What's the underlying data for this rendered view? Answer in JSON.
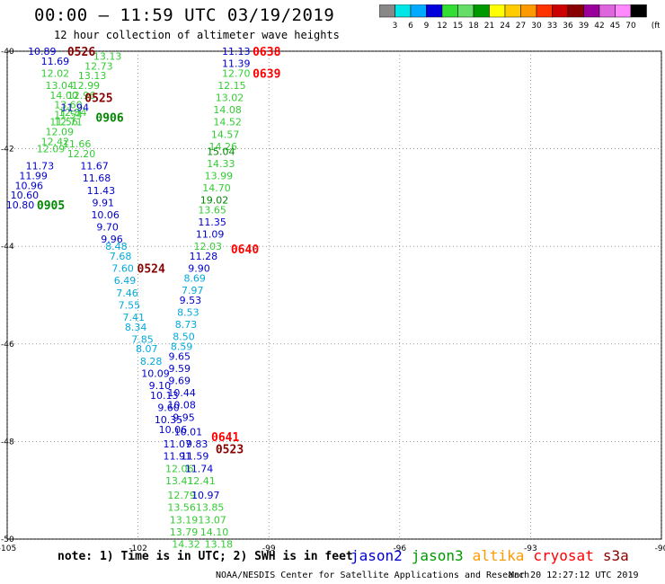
{
  "header": {
    "title": "00:00 – 11:59 UTC 03/19/2019",
    "subtitle": "12 hour collection of altimeter wave heights"
  },
  "colorbar": {
    "labels": [
      "3",
      "6",
      "9",
      "12",
      "15",
      "18",
      "21",
      "24",
      "27",
      "30",
      "33",
      "36",
      "39",
      "42",
      "45",
      "70"
    ],
    "unit": "(ft)",
    "colors": [
      "#888888",
      "#00e5e5",
      "#00aaff",
      "#0000dd",
      "#33dd33",
      "#66dd66",
      "#009900",
      "#ffff00",
      "#ffcc00",
      "#ff9900",
      "#ff3300",
      "#cc0000",
      "#880000",
      "#990099",
      "#dd66dd",
      "#ff88ff",
      "#000000"
    ]
  },
  "satellite_colors": {
    "jason2": "#0000cc",
    "jason3": "#33cc33",
    "jason3_dark": "#008800",
    "altika": "#ff9900",
    "cryosat": "#ff0000",
    "cryosat_dark": "#880000",
    "cyan": "#00aadd"
  },
  "chart_data": {
    "type": "scatter",
    "xlim": [
      -105,
      -90
    ],
    "ylim": [
      -50,
      -40
    ],
    "xticks": [
      -105,
      -102,
      -99,
      -96,
      -93,
      -90
    ],
    "yticks": [
      -40,
      -42,
      -44,
      -46,
      -48,
      -50
    ],
    "grid": true,
    "points": [
      {
        "x": -104.2,
        "y": -40.0,
        "v": "10.89",
        "c": "jason2"
      },
      {
        "x": -103.9,
        "y": -40.2,
        "v": "11.69",
        "c": "jason2"
      },
      {
        "x": -103.9,
        "y": -40.45,
        "v": "12.02",
        "c": "jason3"
      },
      {
        "x": -103.8,
        "y": -40.7,
        "v": "13.04",
        "c": "jason3"
      },
      {
        "x": -103.7,
        "y": -40.9,
        "v": "14.00",
        "c": "jason3"
      },
      {
        "x": -103.6,
        "y": -41.1,
        "v": "13.60",
        "c": "jason3"
      },
      {
        "x": -103.5,
        "y": -41.25,
        "v": "12.84",
        "c": "jason3"
      },
      {
        "x": -103.6,
        "y": -41.45,
        "v": "12.71",
        "c": "jason3"
      },
      {
        "x": -103.8,
        "y": -41.65,
        "v": "12.09",
        "c": "jason3"
      },
      {
        "x": -103.9,
        "y": -41.85,
        "v": "12.42",
        "c": "jason3"
      },
      {
        "x": -104.0,
        "y": -42.0,
        "v": "12.09",
        "c": "jason3"
      },
      {
        "x": -104.25,
        "y": -42.35,
        "v": "11.73",
        "c": "jason2"
      },
      {
        "x": -104.4,
        "y": -42.55,
        "v": "11.99",
        "c": "jason2"
      },
      {
        "x": -104.5,
        "y": -42.75,
        "v": "10.96",
        "c": "jason2"
      },
      {
        "x": -104.6,
        "y": -42.95,
        "v": "10.60",
        "c": "jason2"
      },
      {
        "x": -104.7,
        "y": -43.15,
        "v": "10.80",
        "c": "jason2"
      },
      {
        "x": -102.7,
        "y": -40.1,
        "v": "13.13",
        "c": "jason3"
      },
      {
        "x": -102.9,
        "y": -40.3,
        "v": "12.73",
        "c": "jason3"
      },
      {
        "x": -103.05,
        "y": -40.5,
        "v": "13.13",
        "c": "jason3"
      },
      {
        "x": -103.2,
        "y": -40.7,
        "v": "12.99",
        "c": "jason3"
      },
      {
        "x": -103.3,
        "y": -40.9,
        "v": "12.96",
        "c": "jason3"
      },
      {
        "x": -103.45,
        "y": -41.15,
        "v": "11.94",
        "c": "jason2"
      },
      {
        "x": -103.6,
        "y": -41.3,
        "v": "11.54",
        "c": "jason3"
      },
      {
        "x": -103.7,
        "y": -41.45,
        "v": "11.56",
        "c": "jason3"
      },
      {
        "x": -103.4,
        "y": -41.9,
        "v": "11.66",
        "c": "jason3"
      },
      {
        "x": -103.3,
        "y": -42.1,
        "v": "12.20",
        "c": "jason3"
      },
      {
        "x": -103.0,
        "y": -42.35,
        "v": "11.67",
        "c": "jason2"
      },
      {
        "x": -102.95,
        "y": -42.6,
        "v": "11.68",
        "c": "jason2"
      },
      {
        "x": -102.85,
        "y": -42.85,
        "v": "11.43",
        "c": "jason2"
      },
      {
        "x": -102.8,
        "y": -43.1,
        "v": "9.91",
        "c": "jason2"
      },
      {
        "x": -102.75,
        "y": -43.35,
        "v": "10.06",
        "c": "jason2"
      },
      {
        "x": -102.7,
        "y": -43.6,
        "v": "9.70",
        "c": "jason2"
      },
      {
        "x": -102.6,
        "y": -43.85,
        "v": "9.96",
        "c": "jason2"
      },
      {
        "x": -102.5,
        "y": -44.0,
        "v": "8.48",
        "c": "cyan"
      },
      {
        "x": -102.4,
        "y": -44.2,
        "v": "7.68",
        "c": "cyan"
      },
      {
        "x": -102.35,
        "y": -44.45,
        "v": "7.60",
        "c": "cyan"
      },
      {
        "x": -102.3,
        "y": -44.7,
        "v": "6.49",
        "c": "cyan"
      },
      {
        "x": -102.25,
        "y": -44.95,
        "v": "7.46",
        "c": "cyan"
      },
      {
        "x": -102.2,
        "y": -45.2,
        "v": "7.55",
        "c": "cyan"
      },
      {
        "x": -102.1,
        "y": -45.45,
        "v": "7.41",
        "c": "cyan"
      },
      {
        "x": -102.05,
        "y": -45.65,
        "v": "8.34",
        "c": "cyan"
      },
      {
        "x": -101.9,
        "y": -45.9,
        "v": "7.85",
        "c": "cyan"
      },
      {
        "x": -101.8,
        "y": -46.1,
        "v": "8.07",
        "c": "cyan"
      },
      {
        "x": -101.7,
        "y": -46.35,
        "v": "8.28",
        "c": "cyan"
      },
      {
        "x": -101.6,
        "y": -46.6,
        "v": "10.09",
        "c": "jason2"
      },
      {
        "x": -101.5,
        "y": -46.85,
        "v": "9.10",
        "c": "jason2"
      },
      {
        "x": -101.4,
        "y": -47.05,
        "v": "10.13",
        "c": "jason2"
      },
      {
        "x": -101.3,
        "y": -47.3,
        "v": "9.60",
        "c": "jason2"
      },
      {
        "x": -101.3,
        "y": -47.55,
        "v": "10.35",
        "c": "jason2"
      },
      {
        "x": -101.2,
        "y": -47.75,
        "v": "10.06",
        "c": "jason2"
      },
      {
        "x": -101.1,
        "y": -48.05,
        "v": "11.07",
        "c": "jason2"
      },
      {
        "x": -101.1,
        "y": -48.3,
        "v": "11.91",
        "c": "jason2"
      },
      {
        "x": -101.05,
        "y": -48.55,
        "v": "12.06",
        "c": "jason3"
      },
      {
        "x": -101.05,
        "y": -48.8,
        "v": "13.41",
        "c": "jason3"
      },
      {
        "x": -101.0,
        "y": -49.1,
        "v": "12.79",
        "c": "jason3"
      },
      {
        "x": -101.0,
        "y": -49.35,
        "v": "13.56",
        "c": "jason3"
      },
      {
        "x": -100.95,
        "y": -49.6,
        "v": "13.19",
        "c": "jason3"
      },
      {
        "x": -100.95,
        "y": -49.85,
        "v": "13.79",
        "c": "jason3"
      },
      {
        "x": -100.9,
        "y": -50.1,
        "v": "14.32",
        "c": "jason3"
      },
      {
        "x": -99.75,
        "y": -40.0,
        "v": "11.13",
        "c": "jason2"
      },
      {
        "x": -99.75,
        "y": -40.25,
        "v": "11.39",
        "c": "jason2"
      },
      {
        "x": -99.75,
        "y": -40.45,
        "v": "12.70",
        "c": "jason3"
      },
      {
        "x": -99.85,
        "y": -40.7,
        "v": "12.15",
        "c": "jason3"
      },
      {
        "x": -99.9,
        "y": -40.95,
        "v": "13.02",
        "c": "jason3"
      },
      {
        "x": -99.95,
        "y": -41.2,
        "v": "14.08",
        "c": "jason3"
      },
      {
        "x": -99.95,
        "y": -41.45,
        "v": "14.52",
        "c": "jason3"
      },
      {
        "x": -100.0,
        "y": -41.7,
        "v": "14.57",
        "c": "jason3"
      },
      {
        "x": -100.05,
        "y": -41.95,
        "v": "14.26",
        "c": "jason3"
      },
      {
        "x": -100.1,
        "y": -42.05,
        "v": "15.04",
        "c": "jason3_dark"
      },
      {
        "x": -100.1,
        "y": -42.3,
        "v": "14.33",
        "c": "jason3"
      },
      {
        "x": -100.15,
        "y": -42.55,
        "v": "13.99",
        "c": "jason3"
      },
      {
        "x": -100.2,
        "y": -42.8,
        "v": "14.70",
        "c": "jason3"
      },
      {
        "x": -100.25,
        "y": -43.05,
        "v": "19.02",
        "c": "jason3_dark"
      },
      {
        "x": -100.3,
        "y": -43.25,
        "v": "13.65",
        "c": "jason3"
      },
      {
        "x": -100.3,
        "y": -43.5,
        "v": "11.35",
        "c": "jason2"
      },
      {
        "x": -100.35,
        "y": -43.75,
        "v": "11.09",
        "c": "jason2"
      },
      {
        "x": -100.4,
        "y": -44.0,
        "v": "12.03",
        "c": "jason3"
      },
      {
        "x": -100.5,
        "y": -44.2,
        "v": "11.28",
        "c": "jason2"
      },
      {
        "x": -100.6,
        "y": -44.45,
        "v": "9.90",
        "c": "jason2"
      },
      {
        "x": -100.7,
        "y": -44.65,
        "v": "8.69",
        "c": "cyan"
      },
      {
        "x": -100.75,
        "y": -44.9,
        "v": "7.97",
        "c": "cyan"
      },
      {
        "x": -100.8,
        "y": -45.1,
        "v": "9.53",
        "c": "jason2"
      },
      {
        "x": -100.85,
        "y": -45.35,
        "v": "8.53",
        "c": "cyan"
      },
      {
        "x": -100.9,
        "y": -45.6,
        "v": "8.73",
        "c": "cyan"
      },
      {
        "x": -100.95,
        "y": -45.85,
        "v": "8.50",
        "c": "cyan"
      },
      {
        "x": -101.0,
        "y": -46.05,
        "v": "8.59",
        "c": "cyan"
      },
      {
        "x": -101.05,
        "y": -46.25,
        "v": "9.65",
        "c": "jason2"
      },
      {
        "x": -101.05,
        "y": -46.5,
        "v": "9.59",
        "c": "jason2"
      },
      {
        "x": -101.05,
        "y": -46.75,
        "v": "9.69",
        "c": "jason2"
      },
      {
        "x": -101.0,
        "y": -47.0,
        "v": "10.44",
        "c": "jason2"
      },
      {
        "x": -101.0,
        "y": -47.25,
        "v": "10.08",
        "c": "jason2"
      },
      {
        "x": -100.95,
        "y": -47.5,
        "v": "9.95",
        "c": "jason2"
      },
      {
        "x": -100.85,
        "y": -47.8,
        "v": "10.01",
        "c": "jason2"
      },
      {
        "x": -100.65,
        "y": -48.05,
        "v": "9.83",
        "c": "jason2"
      },
      {
        "x": -100.7,
        "y": -48.3,
        "v": "11.59",
        "c": "jason2"
      },
      {
        "x": -100.6,
        "y": -48.55,
        "v": "11.74",
        "c": "jason2"
      },
      {
        "x": -100.55,
        "y": -48.8,
        "v": "12.41",
        "c": "jason3"
      },
      {
        "x": -100.45,
        "y": -49.1,
        "v": "10.97",
        "c": "jason2"
      },
      {
        "x": -100.35,
        "y": -49.35,
        "v": "13.85",
        "c": "jason3"
      },
      {
        "x": -100.3,
        "y": -49.6,
        "v": "13.07",
        "c": "jason3"
      },
      {
        "x": -100.25,
        "y": -49.85,
        "v": "14.10",
        "c": "jason3"
      },
      {
        "x": -100.15,
        "y": -50.1,
        "v": "13.18",
        "c": "jason3"
      }
    ],
    "time_labels": [
      {
        "x": -103.3,
        "y": -40.0,
        "t": "0526",
        "c": "cryosat_dark"
      },
      {
        "x": -102.9,
        "y": -40.95,
        "t": "0525",
        "c": "cryosat_dark"
      },
      {
        "x": -102.65,
        "y": -41.35,
        "t": "0906",
        "c": "jason3_dark"
      },
      {
        "x": -104.0,
        "y": -43.15,
        "t": "0905",
        "c": "jason3_dark"
      },
      {
        "x": -101.7,
        "y": -44.45,
        "t": "0524",
        "c": "cryosat_dark"
      },
      {
        "x": -99.05,
        "y": -40.0,
        "t": "0638",
        "c": "cryosat"
      },
      {
        "x": -99.05,
        "y": -40.45,
        "t": "0639",
        "c": "cryosat"
      },
      {
        "x": -99.55,
        "y": -44.05,
        "t": "0640",
        "c": "cryosat"
      },
      {
        "x": -100.0,
        "y": -47.9,
        "t": "0641",
        "c": "cryosat"
      },
      {
        "x": -99.9,
        "y": -48.15,
        "t": "0523",
        "c": "cryosat_dark"
      }
    ]
  },
  "note": "note: 1) Time is in UTC; 2) SWH is in feet",
  "legend": [
    {
      "name": "jason2",
      "color": "#0000cc"
    },
    {
      "name": "jason3",
      "color": "#009900"
    },
    {
      "name": "altika",
      "color": "#ff9900"
    },
    {
      "name": "cryosat",
      "color": "#ff0000"
    },
    {
      "name": "s3a",
      "color": "#880000"
    }
  ],
  "footer": {
    "org": "NOAA/NESDIS Center for Satellite Applications and Research",
    "timestamp": "Mar 20 12:27:12 UTC 2019"
  }
}
